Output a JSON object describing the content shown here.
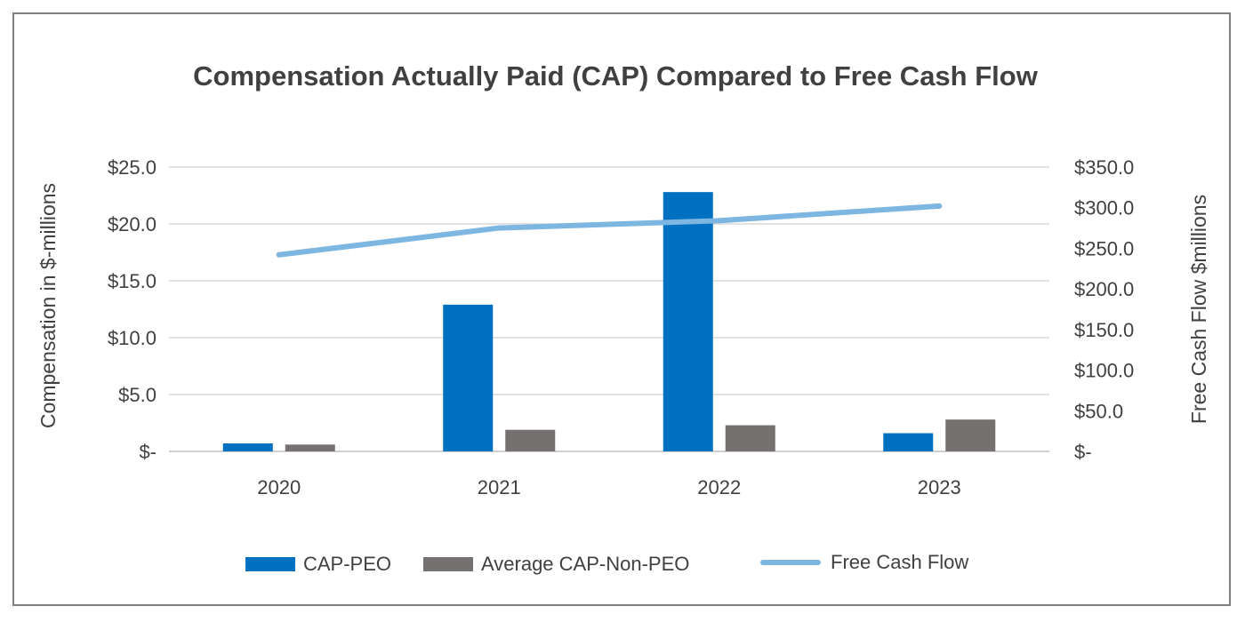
{
  "chart_data": {
    "type": "bar+line",
    "title": "Compensation Actually Paid (CAP) Compared to Free Cash Flow",
    "categories": [
      "2020",
      "2021",
      "2022",
      "2023"
    ],
    "ylabel": "Compensation in $-millions",
    "y2label": "Free Cash Flow $millions",
    "ylim": [
      0,
      25
    ],
    "y2lim": [
      0,
      350
    ],
    "y_ticks": [
      {
        "value": 0,
        "label": "$-"
      },
      {
        "value": 5,
        "label": "$5.0"
      },
      {
        "value": 10,
        "label": "$10.0"
      },
      {
        "value": 15,
        "label": "$15.0"
      },
      {
        "value": 20,
        "label": "$20.0"
      },
      {
        "value": 25,
        "label": "$25.0"
      }
    ],
    "y2_ticks": [
      {
        "value": 0,
        "label": "$-"
      },
      {
        "value": 50,
        "label": "$50.0"
      },
      {
        "value": 100,
        "label": "$100.0"
      },
      {
        "value": 150,
        "label": "$150.0"
      },
      {
        "value": 200,
        "label": "$200.0"
      },
      {
        "value": 250,
        "label": "$250.0"
      },
      {
        "value": 300,
        "label": "$300.0"
      },
      {
        "value": 350,
        "label": "$350.0"
      }
    ],
    "grid": true,
    "legend_position": "bottom",
    "series": [
      {
        "name": "CAP-PEO",
        "type": "bar",
        "axis": "left",
        "color": "#0070c0",
        "values": [
          0.7,
          12.9,
          22.8,
          1.6
        ]
      },
      {
        "name": "Average CAP-Non-PEO",
        "type": "bar",
        "axis": "left",
        "color": "#767171",
        "values": [
          0.6,
          1.9,
          2.3,
          2.8
        ]
      },
      {
        "name": "Free Cash Flow",
        "type": "line",
        "axis": "right",
        "color": "#7eb6e2",
        "values": [
          242,
          275,
          284,
          302
        ]
      }
    ]
  }
}
